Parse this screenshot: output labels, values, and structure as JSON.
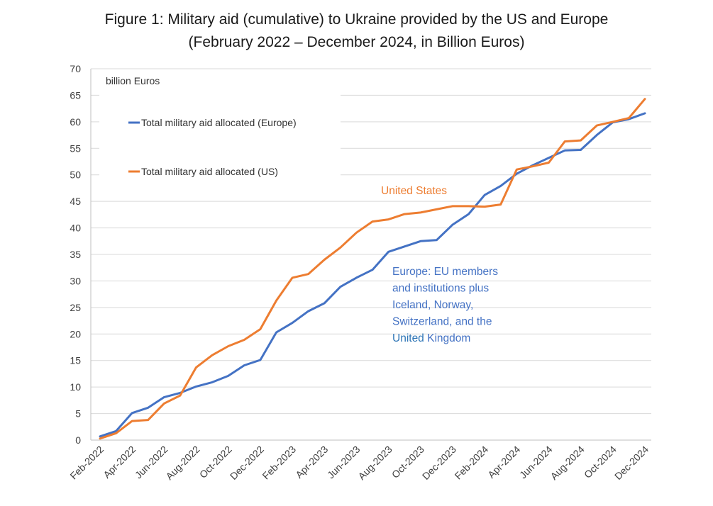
{
  "chart_data": {
    "type": "line",
    "title": "Figure 1: Military aid (cumulative) to Ukraine provided by the US and Europe",
    "subtitle": "(February 2022 – December 2024, in Billion Euros)",
    "ylabel": "billion Euros",
    "xlabel": "",
    "ylim": [
      0,
      70
    ],
    "yticks": [
      0,
      5,
      10,
      15,
      20,
      25,
      30,
      35,
      40,
      45,
      50,
      55,
      60,
      65,
      70
    ],
    "grid": true,
    "legend_position": "top-left",
    "x": [
      "Feb-2022",
      "Mar-2022",
      "Apr-2022",
      "May-2022",
      "Jun-2022",
      "Jul-2022",
      "Aug-2022",
      "Sep-2022",
      "Oct-2022",
      "Nov-2022",
      "Dec-2022",
      "Jan-2023",
      "Feb-2023",
      "Mar-2023",
      "Apr-2023",
      "May-2023",
      "Jun-2023",
      "Jul-2023",
      "Aug-2023",
      "Sep-2023",
      "Oct-2023",
      "Nov-2023",
      "Dec-2023",
      "Jan-2024",
      "Feb-2024",
      "Mar-2024",
      "Apr-2024",
      "May-2024",
      "Jun-2024",
      "Jul-2024",
      "Aug-2024",
      "Sep-2024",
      "Oct-2024",
      "Nov-2024",
      "Dec-2024"
    ],
    "x_tick_labels": [
      "Feb-2022",
      "Apr-2022",
      "Jun-2022",
      "Aug-2022",
      "Oct-2022",
      "Dec-2022",
      "Feb-2023",
      "Apr-2023",
      "Jun-2023",
      "Aug-2023",
      "Oct-2023",
      "Dec-2023",
      "Feb-2024",
      "Apr-2024",
      "Jun-2024",
      "Aug-2024",
      "Oct-2024",
      "Dec-2024"
    ],
    "series": [
      {
        "name": "Total military aid allocated (Europe)",
        "color": "#4472C4",
        "values": [
          0.7,
          1.7,
          5.1,
          6.1,
          8.1,
          8.9,
          10.1,
          10.9,
          12.1,
          14.1,
          15.1,
          20.3,
          22.1,
          24.3,
          25.8,
          28.9,
          30.6,
          32.1,
          35.5,
          36.5,
          37.5,
          37.7,
          40.6,
          42.6,
          46.2,
          47.9,
          50.2,
          51.8,
          53.2,
          54.6,
          54.7,
          57.5,
          59.9,
          60.5,
          61.6
        ]
      },
      {
        "name": "Total military aid allocated (US)",
        "color": "#ED7D31",
        "values": [
          0.3,
          1.3,
          3.6,
          3.8,
          6.9,
          8.4,
          13.7,
          16.0,
          17.7,
          18.9,
          20.9,
          26.3,
          30.6,
          31.3,
          34.0,
          36.3,
          39.1,
          41.2,
          41.6,
          42.6,
          42.9,
          43.5,
          44.1,
          44.1,
          44.0,
          44.4,
          51.0,
          51.6,
          52.3,
          56.3,
          56.5,
          59.3,
          60.0,
          60.7,
          64.3
        ]
      }
    ],
    "annotations": {
      "us": {
        "text": "United States",
        "color": "#ED7D31"
      },
      "europe": {
        "color": "#4472C4",
        "lines": [
          "Europe: EU members",
          "and institutions plus",
          "Iceland, Norway,",
          "Switzerland, and the"
        ],
        "last_line": [
          {
            "text": "United",
            "color": "#2E75B6"
          },
          {
            "text": " Kingdom",
            "color": "#4472C4"
          }
        ]
      }
    }
  }
}
